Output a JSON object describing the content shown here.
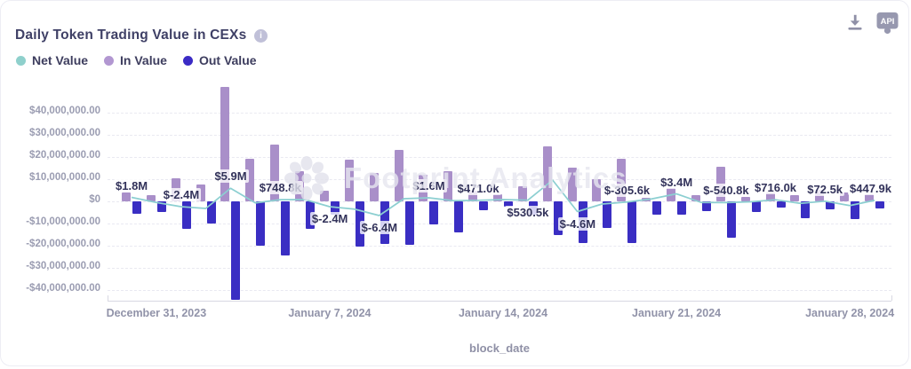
{
  "card": {
    "title": "Daily Token Trading Value in CEXs",
    "info_icon_glyph": "i"
  },
  "toolbar": {
    "download_icon": "download-icon",
    "api_label": "API"
  },
  "legend": [
    {
      "label": "Net Value",
      "color": "#8fd0cc"
    },
    {
      "label": "In Value",
      "color": "#b297d1"
    },
    {
      "label": "Out Value",
      "color": "#3b2bc5"
    }
  ],
  "watermark": {
    "text": "Footprint Analytics",
    "logo": "footprint-flower-logo"
  },
  "colors": {
    "net_line": "#8ccfd1",
    "in_bar": "#a98fc9",
    "out_bar": "#3a2ec3",
    "grid": "#e9e9f1",
    "axis_text": "#9b9db2"
  },
  "chart_data": {
    "type": "bar",
    "title": "Daily Token Trading Value in CEXs",
    "xlabel": "block_date",
    "ylabel": "",
    "ylim": [
      -45000000,
      53000000
    ],
    "grid": true,
    "legend_position": "top-left",
    "x": [
      "2023-12-30",
      "2023-12-31",
      "2024-01-01",
      "2024-01-02",
      "2024-01-03",
      "2024-01-04",
      "2024-01-05",
      "2024-01-06",
      "2024-01-07",
      "2024-01-08",
      "2024-01-09",
      "2024-01-10",
      "2024-01-11",
      "2024-01-12",
      "2024-01-13",
      "2024-01-14",
      "2024-01-15",
      "2024-01-16",
      "2024-01-17",
      "2024-01-18",
      "2024-01-19",
      "2024-01-20",
      "2024-01-21",
      "2024-01-22",
      "2024-01-23",
      "2024-01-24",
      "2024-01-25",
      "2024-01-26",
      "2024-01-27",
      "2024-01-28",
      "2024-01-29"
    ],
    "x_tick_labels": [
      "December 31, 2023",
      "January 7, 2024",
      "January 14, 2024",
      "January 21, 2024",
      "January 28, 2024"
    ],
    "x_tick_indices": [
      1,
      8,
      15,
      22,
      29
    ],
    "y_tick_labels": [
      "$40,000,000.00",
      "$30,000,000.00",
      "$20,000,000.00",
      "$10,000,000.00",
      "$0",
      "-$10,000,000.00",
      "-$20,000,000.00",
      "-$30,000,000.00",
      "-$40,000,000.00"
    ],
    "y_tick_values": [
      40000000,
      30000000,
      20000000,
      10000000,
      0,
      -10000000,
      -20000000,
      -30000000,
      -40000000
    ],
    "series": [
      {
        "name": "Net Value",
        "type": "line",
        "color": "#8ccfd1",
        "values": [
          1800000,
          -500000,
          -2400000,
          -3200000,
          5900000,
          -700000,
          748800,
          800000,
          -2400000,
          -3500000,
          -6400000,
          1200000,
          1600000,
          300000,
          471000,
          800000,
          530500,
          9600000,
          -4600000,
          -1200000,
          -305600,
          1100000,
          3400000,
          -500000,
          -540800,
          -200000,
          716000,
          -900000,
          72500,
          -1900000,
          447900
        ]
      },
      {
        "name": "In Value",
        "type": "bar",
        "color": "#a98fc9",
        "values": [
          4100000,
          2800000,
          10400000,
          7500000,
          51700000,
          19200000,
          25500000,
          13600000,
          4800000,
          18800000,
          13000000,
          23100000,
          12000000,
          13500000,
          5000000,
          3100000,
          6800000,
          24800000,
          15200000,
          10200000,
          19100000,
          1700000,
          6100000,
          3000000,
          15700000,
          2100000,
          3900000,
          2800000,
          5200000,
          4100000,
          3100000
        ]
      },
      {
        "name": "Out Value",
        "type": "bar",
        "color": "#3a2ec3",
        "values": [
          -5600000,
          -4900000,
          -12500000,
          -9900000,
          -44500000,
          -19900000,
          -24500000,
          -12500000,
          -6000000,
          -20500000,
          -19200000,
          -19600000,
          -10500000,
          -13900000,
          -4100000,
          -2300000,
          -6000000,
          -15200000,
          -18800000,
          -11900000,
          -18900000,
          -5800000,
          -6000000,
          -4500000,
          -16300000,
          -4800000,
          -2800000,
          -7500000,
          -3500000,
          -8000000,
          -3200000
        ]
      }
    ],
    "point_labels": [
      {
        "index": 0,
        "text": "$1.8M",
        "side": "above"
      },
      {
        "index": 2,
        "text": "$-2.4M",
        "side": "above"
      },
      {
        "index": 4,
        "text": "$5.9M",
        "side": "above"
      },
      {
        "index": 6,
        "text": "$748.8k",
        "side": "above"
      },
      {
        "index": 8,
        "text": "$-2.4M",
        "side": "below"
      },
      {
        "index": 10,
        "text": "$-6.4M",
        "side": "below"
      },
      {
        "index": 12,
        "text": "$1.6M",
        "side": "above"
      },
      {
        "index": 14,
        "text": "$471.0k",
        "side": "above"
      },
      {
        "index": 16,
        "text": "$530.5k",
        "side": "below"
      },
      {
        "index": 18,
        "text": "$-4.6M",
        "side": "below"
      },
      {
        "index": 20,
        "text": "$-305.6k",
        "side": "above"
      },
      {
        "index": 22,
        "text": "$3.4M",
        "side": "above"
      },
      {
        "index": 24,
        "text": "$-540.8k",
        "side": "above"
      },
      {
        "index": 26,
        "text": "$716.0k",
        "side": "above"
      },
      {
        "index": 28,
        "text": "$72.5k",
        "side": "above"
      },
      {
        "index": 30,
        "text": "$447.9k",
        "side": "above"
      }
    ]
  }
}
